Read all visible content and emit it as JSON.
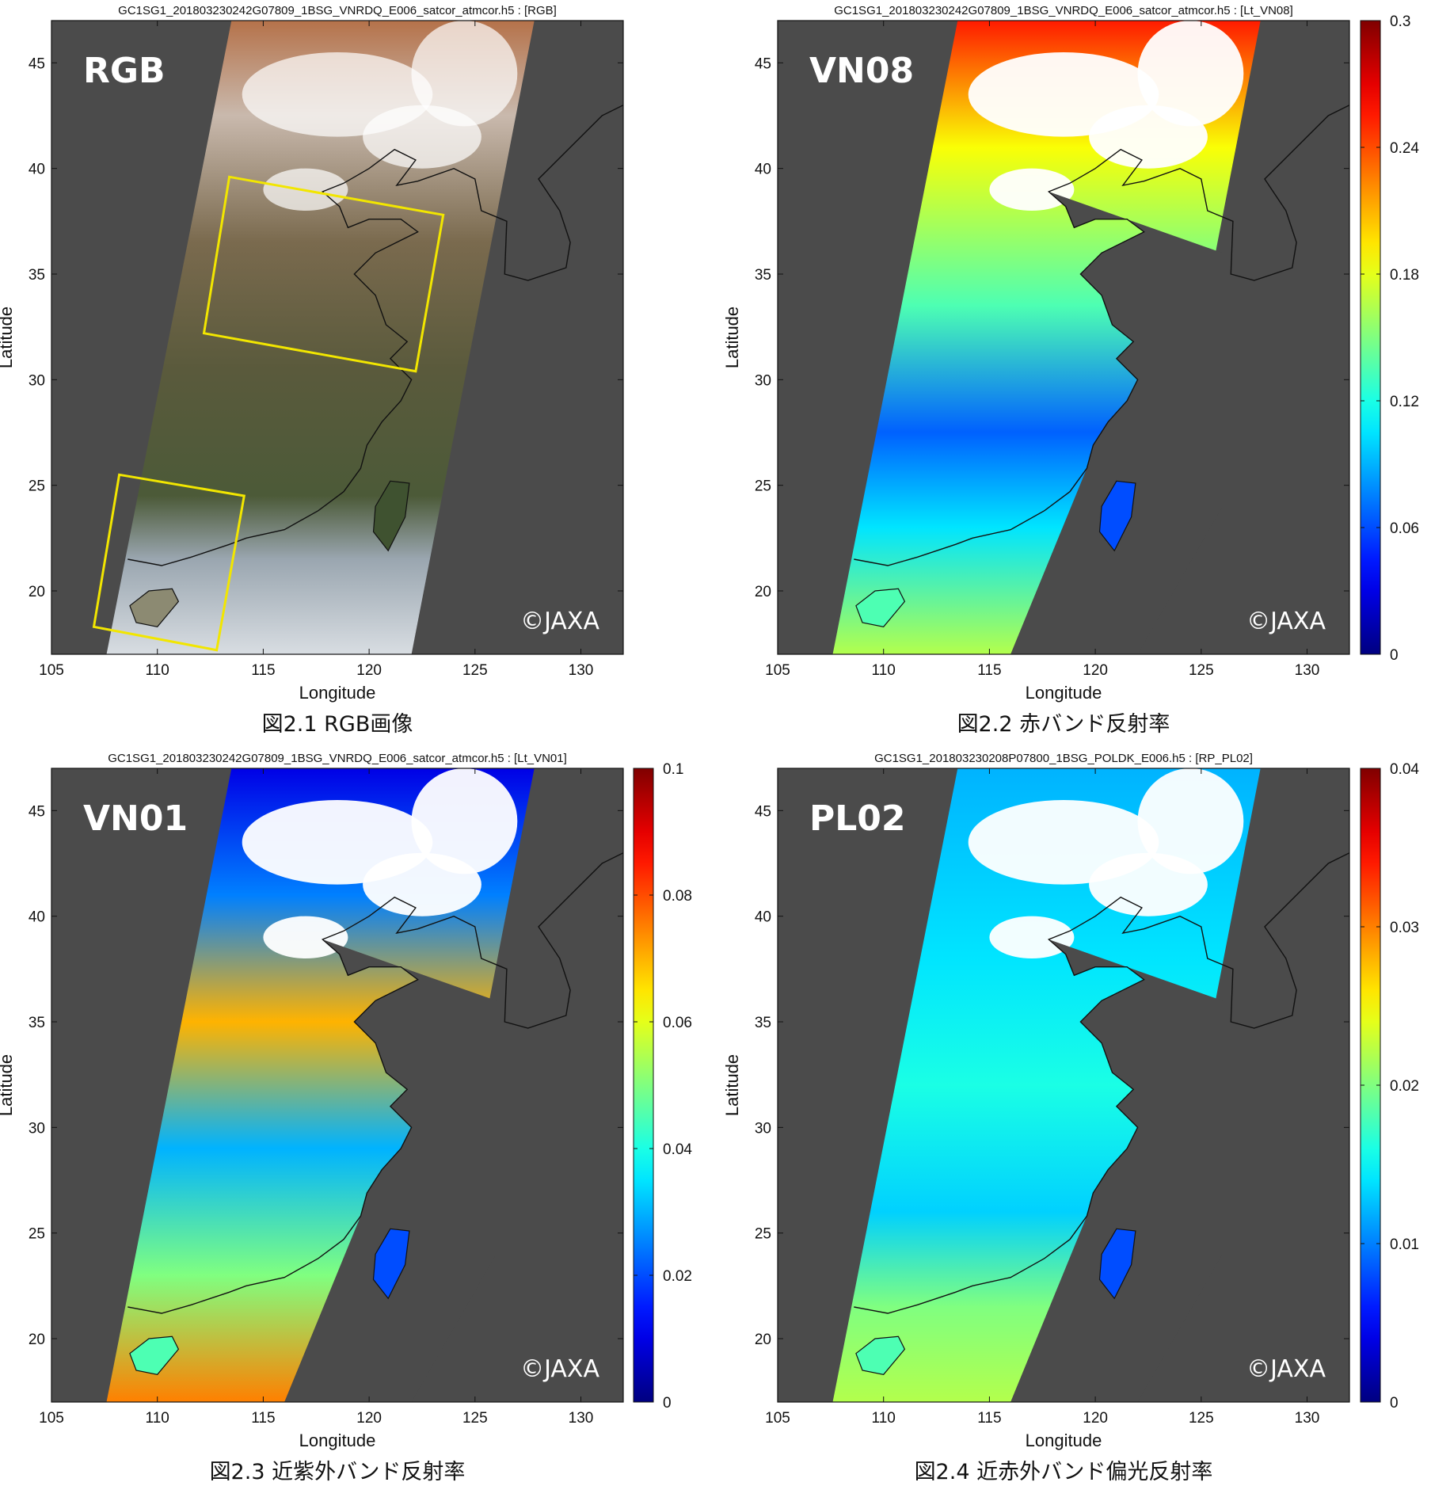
{
  "panels": [
    {
      "id": "rgb",
      "title": "GC1SG1_201803230242G07809_1BSG_VNRDQ_E006_satcor_atmcor.h5 : [RGB]",
      "band_label": "RGB",
      "caption": "図2.1 RGB画像",
      "xlabel": "Longitude",
      "ylabel": "Latitude",
      "credit": "©JAXA",
      "xticks": [
        "105",
        "110",
        "115",
        "120",
        "125",
        "130"
      ],
      "yticks": [
        "20",
        "25",
        "30",
        "35",
        "40",
        "45"
      ],
      "colorbar": null
    },
    {
      "id": "vn08",
      "title": "GC1SG1_201803230242G07809_1BSG_VNRDQ_E006_satcor_atmcor.h5 : [Lt_VN08]",
      "band_label": "VN08",
      "caption": "図2.2 赤バンド反射率",
      "xlabel": "Longitude",
      "ylabel": "Latitude",
      "credit": "©JAXA",
      "xticks": [
        "105",
        "110",
        "115",
        "120",
        "125",
        "130"
      ],
      "yticks": [
        "20",
        "25",
        "30",
        "35",
        "40",
        "45"
      ],
      "colorbar": {
        "colormap": "jet",
        "ticks": [
          "0",
          "0.06",
          "0.12",
          "0.18",
          "0.24",
          "0.3"
        ]
      }
    },
    {
      "id": "vn01",
      "title": "GC1SG1_201803230242G07809_1BSG_VNRDQ_E006_satcor_atmcor.h5 : [Lt_VN01]",
      "band_label": "VN01",
      "caption": "図2.3 近紫外バンド反射率",
      "xlabel": "Longitude",
      "ylabel": "Latitude",
      "credit": "©JAXA",
      "xticks": [
        "105",
        "110",
        "115",
        "120",
        "125",
        "130"
      ],
      "yticks": [
        "20",
        "25",
        "30",
        "35",
        "40",
        "45"
      ],
      "colorbar": {
        "colormap": "jet",
        "ticks": [
          "0",
          "0.02",
          "0.04",
          "0.06",
          "0.08",
          "0.1"
        ]
      }
    },
    {
      "id": "pl02",
      "title": "GC1SG1_201803230208P07800_1BSG_POLDK_E006.h5 : [RP_PL02]",
      "band_label": "PL02",
      "caption": "図2.4 近赤外バンド偏光反射率",
      "xlabel": "Longitude",
      "ylabel": "Latitude",
      "credit": "©JAXA",
      "xticks": [
        "105",
        "110",
        "115",
        "120",
        "125",
        "130"
      ],
      "yticks": [
        "20",
        "25",
        "30",
        "35",
        "40",
        "45"
      ],
      "colorbar": {
        "colormap": "jet",
        "ticks": [
          "0",
          "0.01",
          "0.02",
          "0.03",
          "0.04"
        ]
      }
    }
  ],
  "map": {
    "lon_range": [
      105,
      132
    ],
    "lat_range": [
      17,
      47
    ],
    "background_color": "#4b4b4b",
    "annotation_color": "#f2e600"
  }
}
